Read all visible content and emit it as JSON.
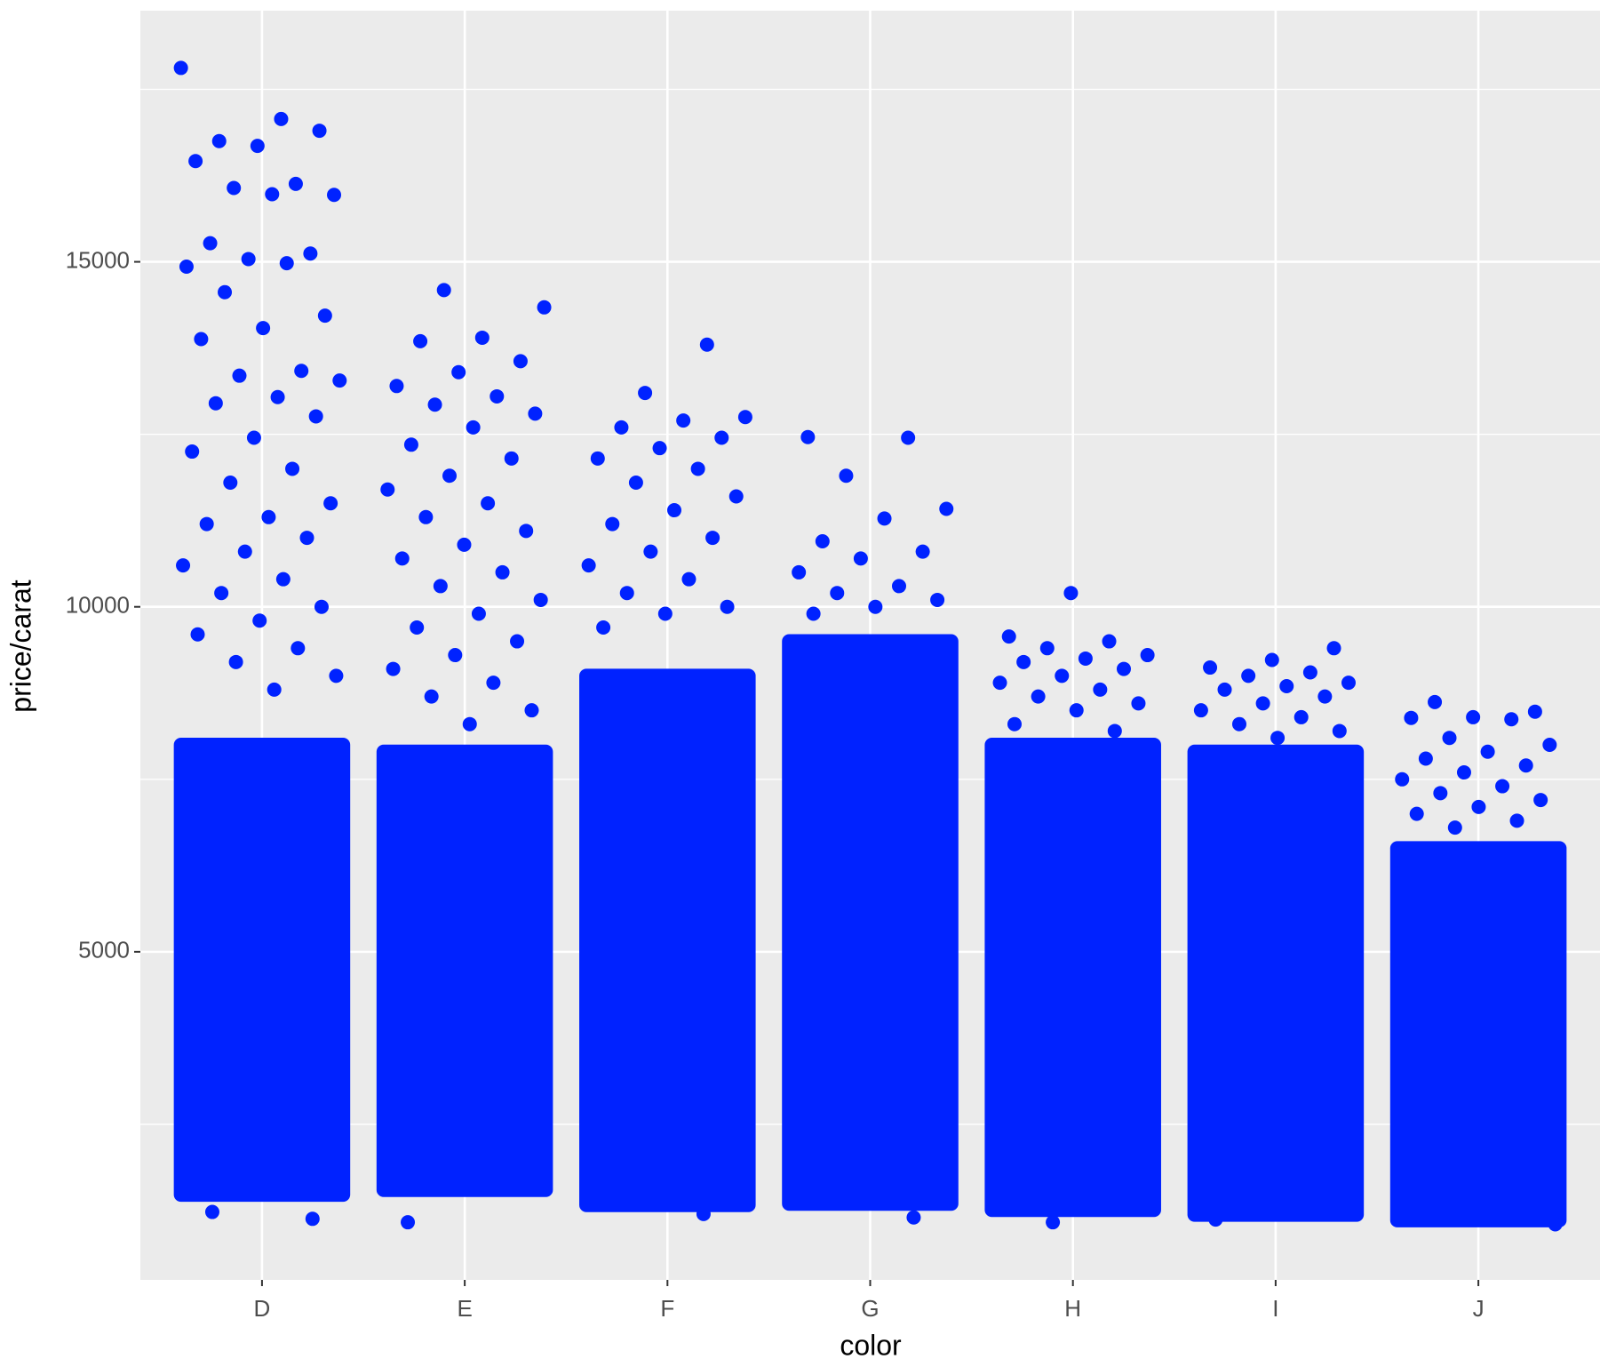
{
  "chart_data": {
    "type": "jitter",
    "x_label": "color",
    "y_label": "price/carat",
    "categories": [
      "D",
      "E",
      "F",
      "G",
      "H",
      "I",
      "J"
    ],
    "color": "#0022ff",
    "ylim": [
      245,
      18640
    ],
    "yticks": [
      5000,
      10000,
      15000
    ],
    "yminorticks": [
      2500,
      7500,
      12500,
      17500
    ],
    "grid": true,
    "dense_ranges": [
      [
        1480,
        8000
      ],
      [
        1550,
        7900
      ],
      [
        1330,
        9000
      ],
      [
        1350,
        9500
      ],
      [
        1260,
        8000
      ],
      [
        1190,
        7900
      ],
      [
        1110,
        6500
      ]
    ],
    "points": [
      [
        17810,
        17070,
        16750,
        16900,
        16680,
        16460,
        16130,
        16070,
        15970,
        15980,
        15270,
        15120,
        15040,
        14930,
        14980,
        14560,
        14220,
        14040,
        13880,
        13420,
        13350,
        13280,
        13040,
        12950,
        12760,
        12450,
        12250,
        12000,
        11800,
        11500,
        11300,
        11200,
        11000,
        10800,
        10600,
        10400,
        10200,
        10000,
        9800,
        9600,
        9400,
        9200,
        9000,
        8800,
        1230,
        1130
      ],
      [
        14590,
        14340,
        13900,
        13850,
        13560,
        13400,
        13200,
        13050,
        12930,
        12800,
        12600,
        12350,
        12150,
        11900,
        11700,
        11500,
        11300,
        11100,
        10900,
        10700,
        10500,
        10300,
        10100,
        9900,
        9700,
        9500,
        9300,
        9100,
        8900,
        8700,
        8500,
        8300,
        1080
      ],
      [
        13800,
        13100,
        12750,
        12700,
        12600,
        12450,
        12300,
        12150,
        12000,
        11800,
        11600,
        11400,
        11200,
        11000,
        10800,
        10600,
        10400,
        10200,
        10000,
        9900,
        9700,
        1200
      ],
      [
        12460,
        12450,
        11900,
        11420,
        11280,
        10950,
        10800,
        10700,
        10500,
        10300,
        10200,
        10100,
        10000,
        9900,
        1150
      ],
      [
        10200,
        9570,
        9500,
        9400,
        9300,
        9250,
        9200,
        9100,
        9000,
        8900,
        8800,
        8700,
        8600,
        8500,
        8300,
        8200,
        1080
      ],
      [
        9400,
        9230,
        9120,
        9050,
        9000,
        8900,
        8850,
        8800,
        8700,
        8600,
        8500,
        8400,
        8300,
        8200,
        8100,
        1120
      ],
      [
        8620,
        8480,
        8400,
        8390,
        8370,
        8100,
        8000,
        7900,
        7800,
        7700,
        7600,
        7500,
        7400,
        7300,
        7200,
        7100,
        7000,
        6900,
        6800,
        1050
      ]
    ]
  }
}
